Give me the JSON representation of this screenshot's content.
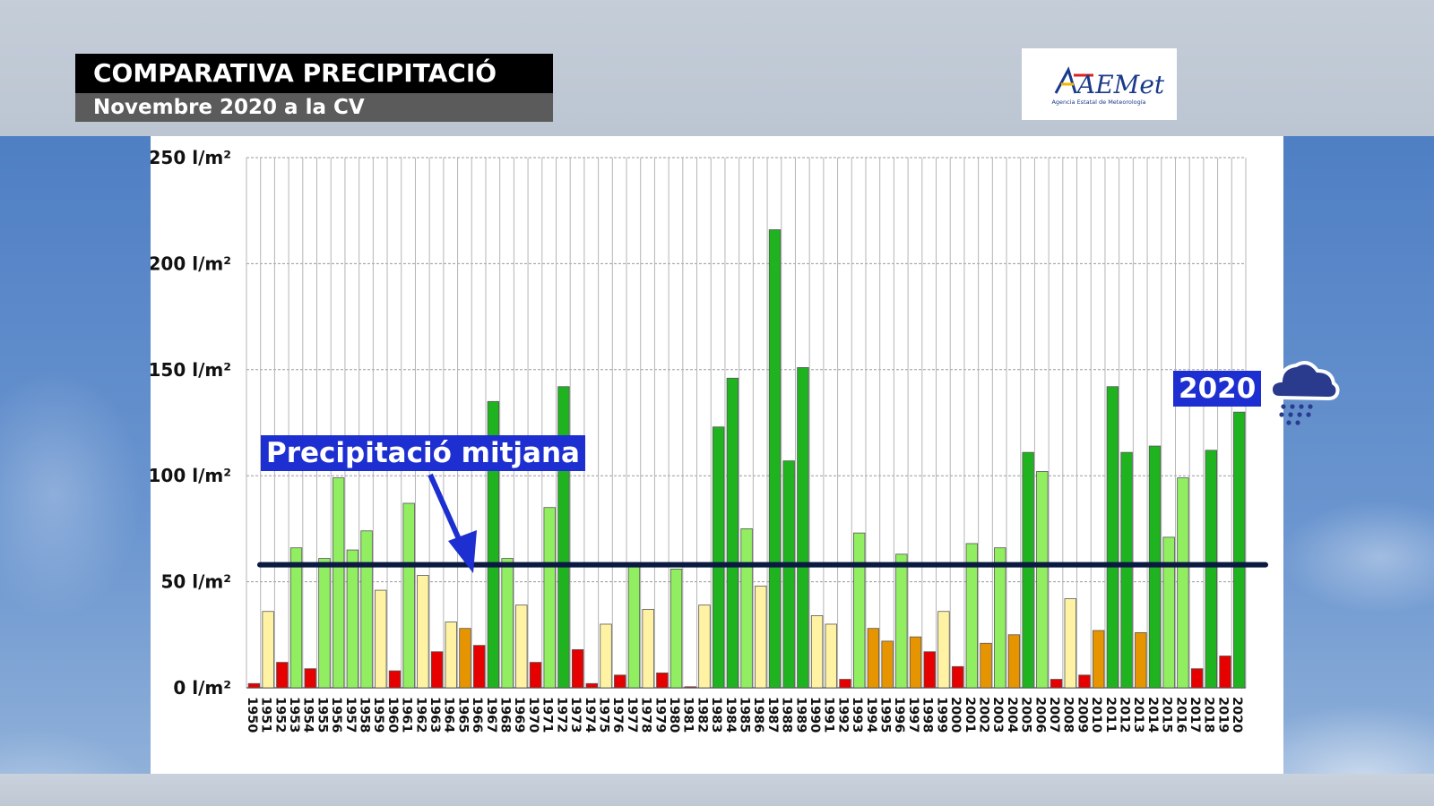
{
  "header": {
    "title": "COMPARATIVA PRECIPITACIÓ",
    "subtitle": "Novembre 2020 a la CV"
  },
  "logo": {
    "text": "AEMet",
    "tagline": "Agencia Estatal de Meteorología"
  },
  "annotations": {
    "average_label": "Precipitació mitjana",
    "current_year_label": "2020",
    "average_value": 58
  },
  "colors": {
    "very_dry": "#e60000",
    "dry": "#e69500",
    "normal_low": "#fff3a3",
    "normal_high": "#90ee60",
    "wet": "#1fb41f",
    "average_line": "#0b1a40",
    "label_bg": "#1d2fd0"
  },
  "chart_data": {
    "type": "bar",
    "ylim": [
      0,
      250
    ],
    "yticks": [
      0,
      50,
      100,
      150,
      200,
      250
    ],
    "y_unit": "l/m²",
    "grid": true,
    "categories": [
      "1950",
      "1951",
      "1952",
      "1953",
      "1954",
      "1955",
      "1956",
      "1957",
      "1958",
      "1959",
      "1960",
      "1961",
      "1962",
      "1963",
      "1964",
      "1965",
      "1966",
      "1967",
      "1968",
      "1969",
      "1970",
      "1971",
      "1972",
      "1973",
      "1974",
      "1975",
      "1976",
      "1977",
      "1978",
      "1979",
      "1980",
      "1981",
      "1982",
      "1983",
      "1984",
      "1985",
      "1986",
      "1987",
      "1988",
      "1989",
      "1990",
      "1991",
      "1992",
      "1993",
      "1994",
      "1995",
      "1996",
      "1997",
      "1998",
      "1999",
      "2000",
      "2001",
      "2002",
      "2003",
      "2004",
      "2005",
      "2006",
      "2007",
      "2008",
      "2009",
      "2010",
      "2011",
      "2012",
      "2013",
      "2014",
      "2015",
      "2016",
      "2017",
      "2018",
      "2019",
      "2020"
    ],
    "values": [
      2,
      36,
      12,
      66,
      9,
      61,
      99,
      65,
      74,
      46,
      8,
      87,
      53,
      17,
      31,
      28,
      20,
      135,
      61,
      39,
      12,
      85,
      142,
      18,
      2,
      30,
      6,
      59,
      37,
      7,
      56,
      0.5,
      39,
      123,
      146,
      75,
      48,
      216,
      107,
      151,
      34,
      30,
      4,
      73,
      28,
      22,
      63,
      24,
      17,
      36,
      10,
      68,
      21,
      66,
      25,
      111,
      102,
      4,
      42,
      6,
      27,
      142,
      111,
      26,
      114,
      71,
      99,
      9,
      112,
      15,
      130
    ],
    "categories_class": [
      "very_dry",
      "normal_low",
      "very_dry",
      "normal_high",
      "very_dry",
      "normal_high",
      "normal_high",
      "normal_high",
      "normal_high",
      "normal_low",
      "very_dry",
      "normal_high",
      "normal_low",
      "very_dry",
      "normal_low",
      "dry",
      "very_dry",
      "wet",
      "normal_high",
      "normal_low",
      "very_dry",
      "normal_high",
      "wet",
      "very_dry",
      "very_dry",
      "normal_low",
      "very_dry",
      "normal_high",
      "normal_low",
      "very_dry",
      "normal_high",
      "very_dry",
      "normal_low",
      "wet",
      "wet",
      "normal_high",
      "normal_low",
      "wet",
      "wet",
      "wet",
      "normal_low",
      "normal_low",
      "very_dry",
      "normal_high",
      "dry",
      "dry",
      "normal_high",
      "dry",
      "very_dry",
      "normal_low",
      "very_dry",
      "normal_high",
      "dry",
      "normal_high",
      "dry",
      "wet",
      "normal_high",
      "very_dry",
      "normal_low",
      "very_dry",
      "dry",
      "wet",
      "wet",
      "dry",
      "wet",
      "normal_high",
      "normal_high",
      "very_dry",
      "wet",
      "very_dry",
      "wet"
    ]
  }
}
